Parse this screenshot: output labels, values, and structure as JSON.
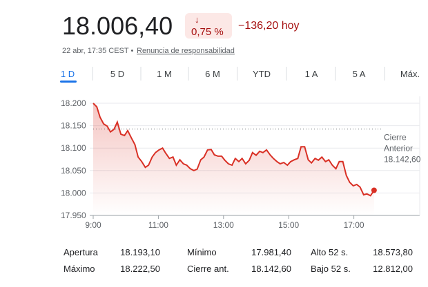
{
  "header": {
    "price": "18.006,40",
    "change_arrow": "↓",
    "change_percent": "0,75 %",
    "change_abs": "−136,20 hoy",
    "timestamp": "22 abr, 17:35 CEST •",
    "disclaimer": "Renuncia de responsabilidad"
  },
  "tabs": [
    "1 D",
    "5 D",
    "1 M",
    "6 M",
    "YTD",
    "1 A",
    "5 A",
    "Máx."
  ],
  "chart_data": {
    "type": "line",
    "color": "#d93025",
    "x": [
      9.0,
      9.11,
      9.21,
      9.32,
      9.43,
      9.53,
      9.64,
      9.74,
      9.85,
      9.96,
      10.06,
      10.17,
      10.28,
      10.38,
      10.49,
      10.6,
      10.7,
      10.81,
      10.91,
      11.02,
      11.13,
      11.23,
      11.34,
      11.45,
      11.55,
      11.66,
      11.77,
      11.87,
      11.98,
      12.09,
      12.19,
      12.3,
      12.4,
      12.51,
      12.62,
      12.72,
      12.83,
      12.94,
      13.04,
      13.15,
      13.26,
      13.36,
      13.47,
      13.57,
      13.68,
      13.79,
      13.89,
      14.0,
      14.11,
      14.21,
      14.32,
      14.43,
      14.53,
      14.64,
      14.74,
      14.85,
      14.96,
      15.06,
      15.17,
      15.28,
      15.38,
      15.49,
      15.6,
      15.7,
      15.81,
      15.91,
      16.02,
      16.13,
      16.23,
      16.34,
      16.45,
      16.55,
      16.66,
      16.77,
      16.87,
      16.98,
      17.09,
      17.19,
      17.3,
      17.4,
      17.51,
      17.62
    ],
    "values": [
      18200,
      18192,
      18169,
      18154,
      18149,
      18136,
      18142,
      18158,
      18131,
      18128,
      18139,
      18123,
      18108,
      18080,
      18070,
      18057,
      18062,
      18080,
      18090,
      18096,
      18100,
      18088,
      18077,
      18080,
      18062,
      18074,
      18065,
      18062,
      18054,
      18050,
      18053,
      18074,
      18080,
      18096,
      18097,
      18085,
      18082,
      18082,
      18073,
      18065,
      18062,
      18077,
      18070,
      18077,
      18065,
      18073,
      18090,
      18084,
      18093,
      18090,
      18096,
      18085,
      18077,
      18070,
      18065,
      18068,
      18062,
      18070,
      18074,
      18077,
      18103,
      18103,
      18074,
      18067,
      18077,
      18073,
      18080,
      18070,
      18074,
      18062,
      18054,
      18070,
      18070,
      18039,
      18024,
      18016,
      18019,
      18013,
      17996,
      17998,
      17994,
      18006
    ],
    "xlim": [
      9,
      19
    ],
    "xticks": [
      {
        "value": 9,
        "label": "9:00"
      },
      {
        "value": 11,
        "label": "11:00"
      },
      {
        "value": 13,
        "label": "13:00"
      },
      {
        "value": 15,
        "label": "15:00"
      },
      {
        "value": 17,
        "label": "17:00"
      }
    ],
    "ylim": [
      17950,
      18200
    ],
    "yticks": [
      {
        "value": 17950,
        "label": "17.950"
      },
      {
        "value": 18000,
        "label": "18.000"
      },
      {
        "value": 18050,
        "label": "18.050"
      },
      {
        "value": 18100,
        "label": "18.100"
      },
      {
        "value": 18150,
        "label": "18.150"
      },
      {
        "value": 18200,
        "label": "18.200"
      }
    ],
    "grid": true,
    "prev_close": {
      "value": 18142.6,
      "label": "18.142,60"
    },
    "prev_close_label": [
      "Cierre",
      "Anterior"
    ]
  },
  "stats": [
    [
      [
        "Apertura",
        "18.193,10"
      ],
      [
        "Mínimo",
        "17.981,40"
      ],
      [
        "Alto 52 s.",
        "18.573,80"
      ]
    ],
    [
      [
        "Máximo",
        "18.222,50"
      ],
      [
        "Cierre ant.",
        "18.142,60"
      ],
      [
        "Bajo 52 s.",
        "12.812,00"
      ]
    ]
  ]
}
